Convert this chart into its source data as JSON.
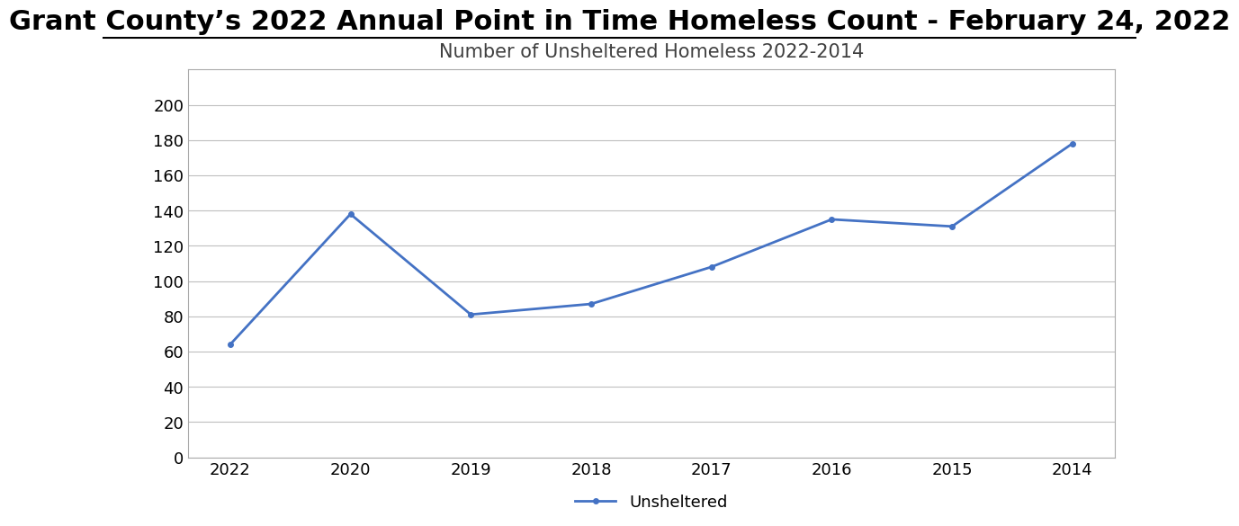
{
  "title_main": "Grant County’s 2022 Annual Point in Time Homeless Count - February 24, 2022",
  "subtitle": "Number of Unsheltered Homeless 2022-2014",
  "years": [
    "2022",
    "2020",
    "2019",
    "2018",
    "2017",
    "2016",
    "2015",
    "2014"
  ],
  "values": [
    64,
    138,
    81,
    87,
    108,
    135,
    131,
    178
  ],
  "line_color": "#4472C4",
  "line_width": 2.0,
  "marker": "o",
  "marker_size": 4,
  "ylim": [
    0,
    220
  ],
  "yticks": [
    0,
    20,
    40,
    60,
    80,
    100,
    120,
    140,
    160,
    180,
    200
  ],
  "legend_label": "Unsheltered",
  "grid_color": "#BFBFBF",
  "plot_bg": "#FFFFFF",
  "outer_bg": "#FFFFFF",
  "title_fontsize": 22,
  "subtitle_fontsize": 15,
  "axis_tick_fontsize": 13,
  "legend_fontsize": 13
}
